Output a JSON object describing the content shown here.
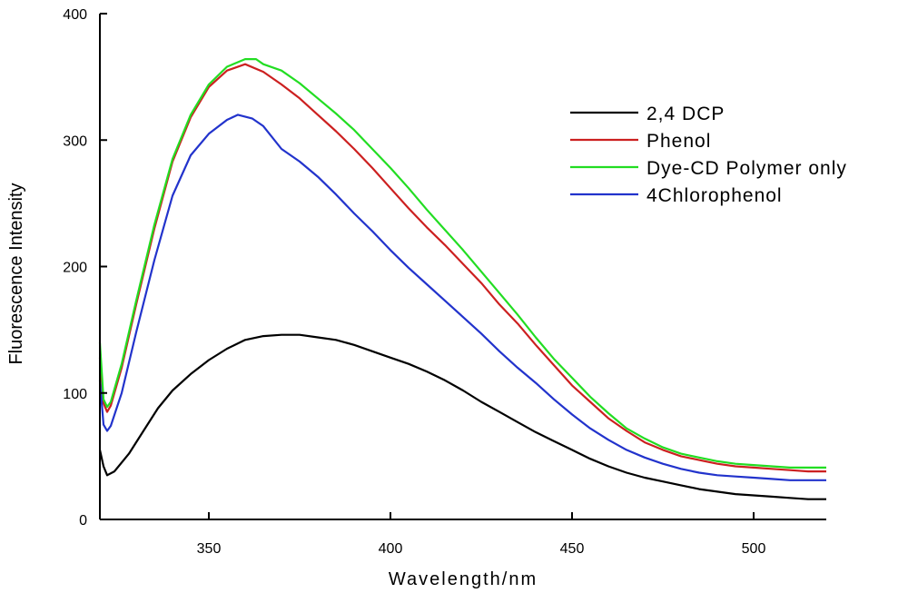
{
  "chart_data": {
    "type": "line",
    "xlabel": "Wavelength/nm",
    "ylabel": "Fluorescence Intensity",
    "xlim": [
      320,
      520
    ],
    "ylim": [
      0,
      400
    ],
    "x_ticks": [
      350,
      400,
      450,
      500
    ],
    "y_ticks": [
      0,
      100,
      200,
      300,
      400
    ],
    "grid": false,
    "legend_position": "top-right",
    "series": [
      {
        "name": "2,4 DCP",
        "color": "#000000",
        "points": [
          [
            320,
            55
          ],
          [
            321,
            42
          ],
          [
            322,
            35
          ],
          [
            324,
            38
          ],
          [
            328,
            52
          ],
          [
            332,
            70
          ],
          [
            336,
            88
          ],
          [
            340,
            102
          ],
          [
            345,
            115
          ],
          [
            350,
            126
          ],
          [
            355,
            135
          ],
          [
            360,
            142
          ],
          [
            365,
            145
          ],
          [
            370,
            146
          ],
          [
            375,
            146
          ],
          [
            380,
            144
          ],
          [
            385,
            142
          ],
          [
            390,
            138
          ],
          [
            395,
            133
          ],
          [
            400,
            128
          ],
          [
            405,
            123
          ],
          [
            410,
            117
          ],
          [
            415,
            110
          ],
          [
            420,
            102
          ],
          [
            425,
            93
          ],
          [
            430,
            85
          ],
          [
            435,
            77
          ],
          [
            440,
            69
          ],
          [
            445,
            62
          ],
          [
            450,
            55
          ],
          [
            455,
            48
          ],
          [
            460,
            42
          ],
          [
            465,
            37
          ],
          [
            470,
            33
          ],
          [
            475,
            30
          ],
          [
            480,
            27
          ],
          [
            485,
            24
          ],
          [
            490,
            22
          ],
          [
            495,
            20
          ],
          [
            500,
            19
          ],
          [
            505,
            18
          ],
          [
            510,
            17
          ],
          [
            515,
            16
          ],
          [
            520,
            16
          ]
        ]
      },
      {
        "name": "Phenol",
        "color": "#cc2020",
        "points": [
          [
            320,
            128
          ],
          [
            321,
            92
          ],
          [
            322,
            85
          ],
          [
            323,
            90
          ],
          [
            326,
            120
          ],
          [
            330,
            170
          ],
          [
            335,
            230
          ],
          [
            340,
            283
          ],
          [
            345,
            318
          ],
          [
            350,
            342
          ],
          [
            355,
            355
          ],
          [
            360,
            360
          ],
          [
            365,
            354
          ],
          [
            370,
            344
          ],
          [
            375,
            333
          ],
          [
            380,
            320
          ],
          [
            385,
            307
          ],
          [
            390,
            293
          ],
          [
            395,
            278
          ],
          [
            400,
            262
          ],
          [
            405,
            246
          ],
          [
            410,
            231
          ],
          [
            415,
            217
          ],
          [
            420,
            202
          ],
          [
            425,
            187
          ],
          [
            430,
            170
          ],
          [
            435,
            155
          ],
          [
            440,
            138
          ],
          [
            445,
            122
          ],
          [
            450,
            106
          ],
          [
            455,
            93
          ],
          [
            460,
            80
          ],
          [
            465,
            70
          ],
          [
            470,
            61
          ],
          [
            475,
            55
          ],
          [
            480,
            50
          ],
          [
            485,
            47
          ],
          [
            490,
            44
          ],
          [
            495,
            42
          ],
          [
            500,
            41
          ],
          [
            505,
            40
          ],
          [
            510,
            39
          ],
          [
            515,
            38
          ],
          [
            520,
            38
          ]
        ]
      },
      {
        "name": "Dye-CD Polymer only",
        "color": "#22dd22",
        "points": [
          [
            320,
            140
          ],
          [
            321,
            95
          ],
          [
            322,
            89
          ],
          [
            323,
            93
          ],
          [
            326,
            123
          ],
          [
            330,
            173
          ],
          [
            335,
            233
          ],
          [
            340,
            285
          ],
          [
            345,
            320
          ],
          [
            350,
            344
          ],
          [
            355,
            358
          ],
          [
            360,
            364
          ],
          [
            363,
            364
          ],
          [
            365,
            360
          ],
          [
            370,
            355
          ],
          [
            375,
            345
          ],
          [
            380,
            333
          ],
          [
            385,
            321
          ],
          [
            390,
            308
          ],
          [
            395,
            293
          ],
          [
            400,
            278
          ],
          [
            405,
            262
          ],
          [
            410,
            245
          ],
          [
            415,
            229
          ],
          [
            420,
            213
          ],
          [
            425,
            196
          ],
          [
            430,
            179
          ],
          [
            435,
            162
          ],
          [
            440,
            144
          ],
          [
            445,
            127
          ],
          [
            450,
            112
          ],
          [
            455,
            97
          ],
          [
            460,
            84
          ],
          [
            465,
            72
          ],
          [
            470,
            64
          ],
          [
            475,
            57
          ],
          [
            480,
            52
          ],
          [
            485,
            49
          ],
          [
            490,
            46
          ],
          [
            495,
            44
          ],
          [
            500,
            43
          ],
          [
            505,
            42
          ],
          [
            510,
            41
          ],
          [
            515,
            41
          ],
          [
            520,
            41
          ]
        ]
      },
      {
        "name": "4Chlorophenol",
        "color": "#2233cc",
        "points": [
          [
            320,
            110
          ],
          [
            321,
            75
          ],
          [
            322,
            70
          ],
          [
            323,
            74
          ],
          [
            326,
            100
          ],
          [
            330,
            148
          ],
          [
            335,
            205
          ],
          [
            340,
            256
          ],
          [
            345,
            288
          ],
          [
            350,
            305
          ],
          [
            355,
            316
          ],
          [
            358,
            320
          ],
          [
            362,
            317
          ],
          [
            365,
            311
          ],
          [
            370,
            293
          ],
          [
            375,
            283
          ],
          [
            380,
            271
          ],
          [
            385,
            257
          ],
          [
            390,
            242
          ],
          [
            395,
            228
          ],
          [
            400,
            213
          ],
          [
            405,
            199
          ],
          [
            410,
            186
          ],
          [
            415,
            173
          ],
          [
            420,
            160
          ],
          [
            425,
            147
          ],
          [
            430,
            133
          ],
          [
            435,
            120
          ],
          [
            440,
            108
          ],
          [
            445,
            95
          ],
          [
            450,
            83
          ],
          [
            455,
            72
          ],
          [
            460,
            63
          ],
          [
            465,
            55
          ],
          [
            470,
            49
          ],
          [
            475,
            44
          ],
          [
            480,
            40
          ],
          [
            485,
            37
          ],
          [
            490,
            35
          ],
          [
            495,
            34
          ],
          [
            500,
            33
          ],
          [
            505,
            32
          ],
          [
            510,
            31
          ],
          [
            515,
            31
          ],
          [
            520,
            31
          ]
        ]
      }
    ]
  }
}
